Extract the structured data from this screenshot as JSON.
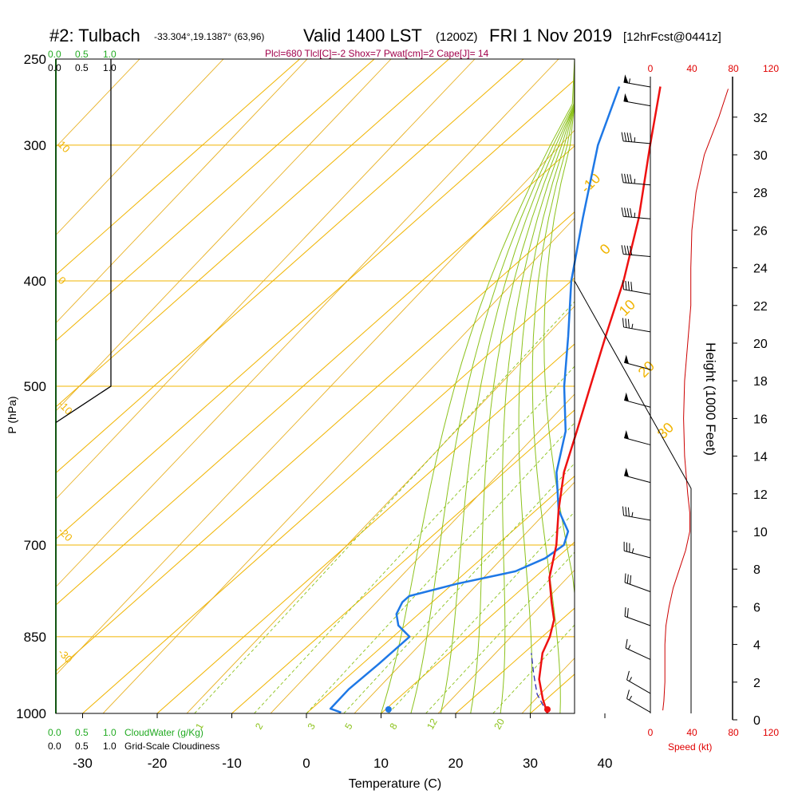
{
  "header": {
    "station": "#2: Tulbach",
    "coords": "-33.304°,19.1387° (63,96)",
    "valid": "Valid 1400 LST",
    "utc": "(1200Z)",
    "date": "FRI 1 Nov 2019",
    "forecast": "[12hrFcst@0441z]",
    "indices": "Plcl=680 Tlcl[C]=-2 Shox=7 Pwat[cm]=2 Cape[J]= 14"
  },
  "labels": {
    "cloudwater_scale": [
      "0.0",
      "0.5",
      "1.0"
    ],
    "cloudiness_scale": [
      "0.0",
      "0.5",
      "1.0"
    ],
    "cloudwater_label": "CloudWater (g/Kg)",
    "cloudiness_label": "Grid-Scale Cloudiness",
    "speed_label": "Speed (kt)"
  },
  "colors": {
    "isotherm": "#f0b400",
    "dry_adiabat": "#e8b020",
    "moist_adiabat": "#8cc21c",
    "mixing_ratio": "#8cc21c",
    "temperature": "#ee1111",
    "dewpoint": "#1e78e6",
    "cloud": "#22aa22",
    "speed": "#cc0000",
    "indices": "#a0004a"
  },
  "chart_data": {
    "type": "line",
    "title": "#2: Tulbach  Valid 1400 LST (1200Z) FRI 1 Nov 2019 [12hrFcst@0441z]",
    "xlabel": "Temperature (C)",
    "ylabel": "P (hPa)",
    "y2label": "Height (1000 Feet)",
    "xlim": [
      -35,
      36
    ],
    "ylim": [
      1000,
      250
    ],
    "y_log_scale": true,
    "x_ticks": [
      -30,
      -20,
      -10,
      0,
      10,
      20,
      30,
      40
    ],
    "pressure_ticks": [
      250,
      300,
      400,
      500,
      700,
      850,
      1000
    ],
    "height_ticks": [
      0,
      2,
      4,
      6,
      8,
      10,
      12,
      14,
      16,
      18,
      20,
      22,
      24,
      26,
      28,
      30,
      32
    ],
    "speed_ticks_top": [
      0,
      40,
      80,
      120
    ],
    "speed_ticks_bottom": [
      0,
      40,
      80,
      120
    ],
    "isotherm_labels": [
      {
        "t": -10,
        "text": "-10"
      },
      {
        "t": 0,
        "text": "0"
      },
      {
        "t": 10,
        "text": "10"
      },
      {
        "t": 20,
        "text": "20"
      },
      {
        "t": 30,
        "text": "30"
      }
    ],
    "left_labels": [
      {
        "p": 300,
        "text": "10"
      },
      {
        "p": 400,
        "text": "0"
      },
      {
        "p": 520,
        "text": "-10"
      },
      {
        "p": 680,
        "text": "-20"
      },
      {
        "p": 880,
        "text": "-30"
      }
    ],
    "mixing_ratio_labels": [
      "1",
      "2",
      "3",
      "5",
      "8",
      "12",
      "20"
    ],
    "series": [
      {
        "name": "Temperature",
        "points": [
          {
            "p": 1000,
            "t": 32.3
          },
          {
            "p": 970,
            "t": 29.5
          },
          {
            "p": 930,
            "t": 26.0
          },
          {
            "p": 880,
            "t": 22.5
          },
          {
            "p": 850,
            "t": 21.0
          },
          {
            "p": 820,
            "t": 19.0
          },
          {
            "p": 790,
            "t": 16.0
          },
          {
            "p": 750,
            "t": 12.0
          },
          {
            "p": 700,
            "t": 8.0
          },
          {
            "p": 650,
            "t": 3.0
          },
          {
            "p": 600,
            "t": -2.0
          },
          {
            "p": 550,
            "t": -6.5
          },
          {
            "p": 500,
            "t": -11.5
          },
          {
            "p": 450,
            "t": -17.0
          },
          {
            "p": 400,
            "t": -23.0
          },
          {
            "p": 350,
            "t": -30.5
          },
          {
            "p": 300,
            "t": -40.0
          },
          {
            "p": 265,
            "t": -47.5
          }
        ]
      },
      {
        "name": "Dewpoint",
        "points": [
          {
            "p": 998,
            "t": 4.5
          },
          {
            "p": 990,
            "t": 2.5
          },
          {
            "p": 950,
            "t": 2.0
          },
          {
            "p": 900,
            "t": 2.2
          },
          {
            "p": 850,
            "t": 2.2
          },
          {
            "p": 830,
            "t": -1.0
          },
          {
            "p": 810,
            "t": -3.0
          },
          {
            "p": 790,
            "t": -4.0
          },
          {
            "p": 780,
            "t": -4.0
          },
          {
            "p": 760,
            "t": 0.5
          },
          {
            "p": 740,
            "t": 6.5
          },
          {
            "p": 720,
            "t": 8.5
          },
          {
            "p": 700,
            "t": 9.0
          },
          {
            "p": 680,
            "t": 7.5
          },
          {
            "p": 650,
            "t": 3.0
          },
          {
            "p": 600,
            "t": -3.0
          },
          {
            "p": 550,
            "t": -8.0
          },
          {
            "p": 500,
            "t": -15.0
          },
          {
            "p": 450,
            "t": -22.0
          },
          {
            "p": 400,
            "t": -30.0
          },
          {
            "p": 350,
            "t": -38.0
          },
          {
            "p": 300,
            "t": -47.0
          },
          {
            "p": 265,
            "t": -53.0
          }
        ]
      },
      {
        "name": "Parcel",
        "points": [
          {
            "p": 1000,
            "t": 32.3
          },
          {
            "p": 960,
            "t": 28.0
          },
          {
            "p": 920,
            "t": 24.5
          },
          {
            "p": 880,
            "t": 21.0
          }
        ]
      },
      {
        "name": "Wind speed",
        "points": [
          {
            "h": 0.5,
            "v": 12
          },
          {
            "h": 1,
            "v": 13
          },
          {
            "h": 2,
            "v": 14
          },
          {
            "h": 3,
            "v": 14
          },
          {
            "h": 4,
            "v": 14
          },
          {
            "h": 5,
            "v": 15
          },
          {
            "h": 6,
            "v": 18
          },
          {
            "h": 7,
            "v": 22
          },
          {
            "h": 8,
            "v": 28
          },
          {
            "h": 9,
            "v": 34
          },
          {
            "h": 10,
            "v": 38
          },
          {
            "h": 11,
            "v": 38
          },
          {
            "h": 12,
            "v": 36
          },
          {
            "h": 14,
            "v": 33
          },
          {
            "h": 16,
            "v": 32
          },
          {
            "h": 18,
            "v": 33
          },
          {
            "h": 20,
            "v": 36
          },
          {
            "h": 22,
            "v": 39
          },
          {
            "h": 24,
            "v": 39
          },
          {
            "h": 26,
            "v": 40
          },
          {
            "h": 28,
            "v": 44
          },
          {
            "h": 30,
            "v": 52
          },
          {
            "h": 32,
            "v": 66
          },
          {
            "h": 33.5,
            "v": 75
          }
        ]
      },
      {
        "name": "Cloudiness",
        "points": [
          {
            "p": 250,
            "v": 0.5
          },
          {
            "p": 500,
            "v": 0.5
          },
          {
            "p": 540,
            "v": 0
          }
        ]
      }
    ],
    "surface_markers": [
      {
        "name": "Surface dewpoint",
        "p": 1000,
        "t": 11.0
      },
      {
        "name": "Surface temperature",
        "p": 1000,
        "t": 32.3
      }
    ],
    "wind_barbs": [
      {
        "h": 0.4,
        "dir": 300,
        "kt": 15
      },
      {
        "h": 1.4,
        "dir": 300,
        "kt": 15
      },
      {
        "h": 3.2,
        "dir": 295,
        "kt": 15
      },
      {
        "h": 5.0,
        "dir": 290,
        "kt": 20
      },
      {
        "h": 6.8,
        "dir": 290,
        "kt": 30
      },
      {
        "h": 8.6,
        "dir": 285,
        "kt": 35
      },
      {
        "h": 10.6,
        "dir": 280,
        "kt": 35
      },
      {
        "h": 12.6,
        "dir": 285,
        "kt": 50
      },
      {
        "h": 14.6,
        "dir": 285,
        "kt": 50
      },
      {
        "h": 16.6,
        "dir": 285,
        "kt": 50
      },
      {
        "h": 18.6,
        "dir": 285,
        "kt": 50
      },
      {
        "h": 20.6,
        "dir": 280,
        "kt": 35
      },
      {
        "h": 22.6,
        "dir": 280,
        "kt": 40
      },
      {
        "h": 24.6,
        "dir": 275,
        "kt": 40
      },
      {
        "h": 26.6,
        "dir": 275,
        "kt": 45
      },
      {
        "h": 28.4,
        "dir": 275,
        "kt": 45
      },
      {
        "h": 30.6,
        "dir": 275,
        "kt": 45
      },
      {
        "h": 32.6,
        "dir": 280,
        "kt": 50
      },
      {
        "h": 33.6,
        "dir": 280,
        "kt": 55
      }
    ]
  }
}
